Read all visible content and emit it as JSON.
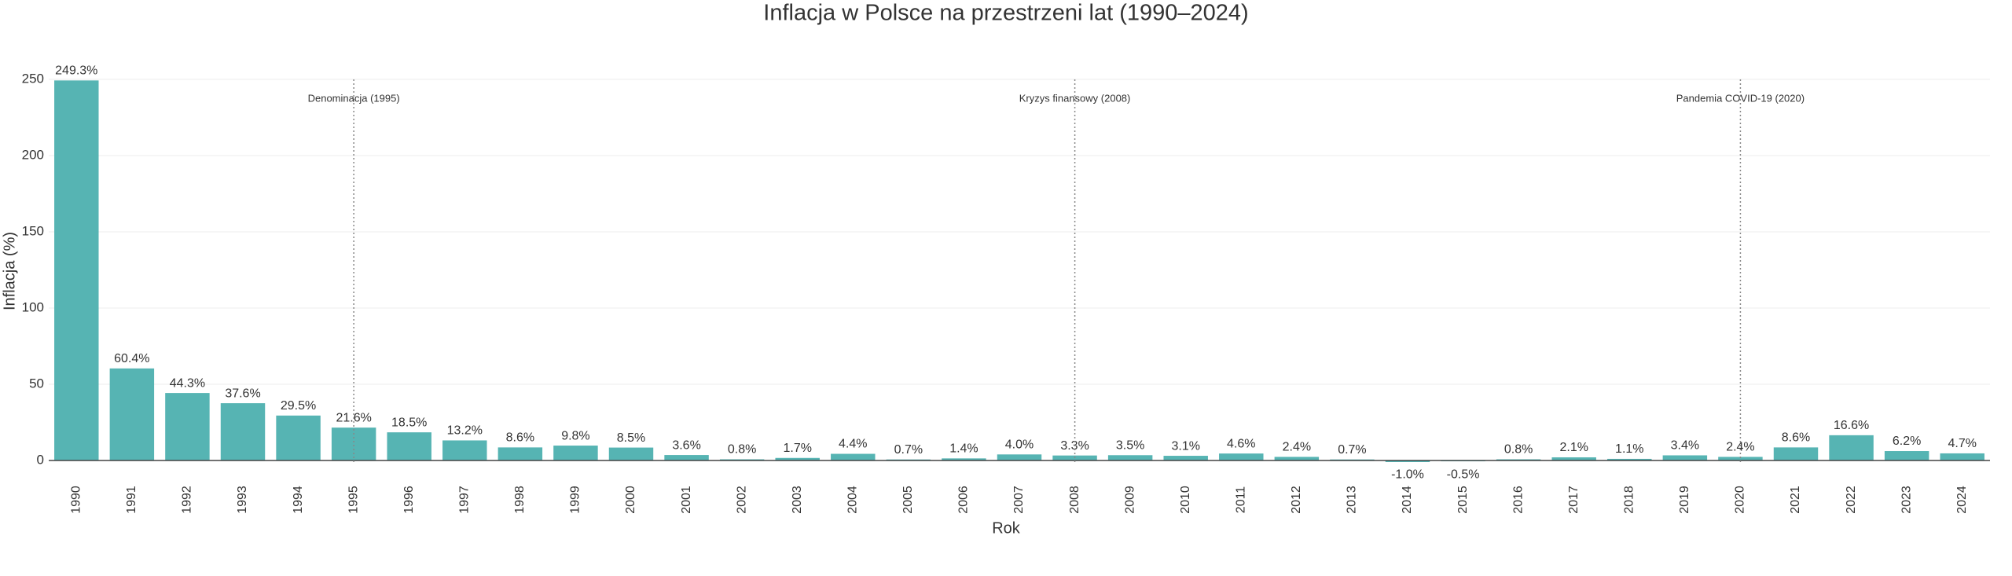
{
  "chart_data": {
    "type": "bar",
    "title": "Inflacja w Polsce na przestrzeni lat (1990–2024)",
    "x_label": "Rok",
    "y_label": "Inflacja (%)",
    "categories": [
      "1990",
      "1991",
      "1992",
      "1993",
      "1994",
      "1995",
      "1996",
      "1997",
      "1998",
      "1999",
      "2000",
      "2001",
      "2002",
      "2003",
      "2004",
      "2005",
      "2006",
      "2007",
      "2008",
      "2009",
      "2010",
      "2011",
      "2012",
      "2013",
      "2014",
      "2015",
      "2016",
      "2017",
      "2018",
      "2019",
      "2020",
      "2021",
      "2022",
      "2023",
      "2024"
    ],
    "values": [
      249.3,
      60.4,
      44.3,
      37.6,
      29.5,
      21.6,
      18.5,
      13.2,
      8.6,
      9.8,
      8.5,
      3.6,
      0.8,
      1.7,
      4.4,
      0.7,
      1.4,
      4.0,
      3.3,
      3.5,
      3.1,
      4.6,
      2.4,
      0.7,
      -1.0,
      -0.5,
      0.8,
      2.1,
      1.1,
      3.4,
      2.4,
      8.6,
      16.6,
      6.2,
      4.7
    ],
    "value_labels": [
      "249.3%",
      "60.4%",
      "44.3%",
      "37.6%",
      "29.5%",
      "21.6%",
      "18.5%",
      "13.2%",
      "8.6%",
      "9.8%",
      "8.5%",
      "3.6%",
      "0.8%",
      "1.7%",
      "4.4%",
      "0.7%",
      "1.4%",
      "4.0%",
      "3.3%",
      "3.5%",
      "3.1%",
      "4.6%",
      "2.4%",
      "0.7%",
      "-1.0%",
      "-0.5%",
      "0.8%",
      "2.1%",
      "1.1%",
      "3.4%",
      "2.4%",
      "8.6%",
      "16.6%",
      "6.2%",
      "4.7%"
    ],
    "color": "#56b4b3",
    "ylim": [
      -1,
      250
    ],
    "yticks": [
      0,
      50,
      100,
      150,
      200,
      250
    ],
    "grid": true,
    "annotations": [
      {
        "x": "1995",
        "text": "Denominacja (1995)"
      },
      {
        "x": "2008",
        "text": "Kryzys finansowy (2008)"
      },
      {
        "x": "2020",
        "text": "Pandemia COVID-19 (2020)"
      }
    ]
  }
}
